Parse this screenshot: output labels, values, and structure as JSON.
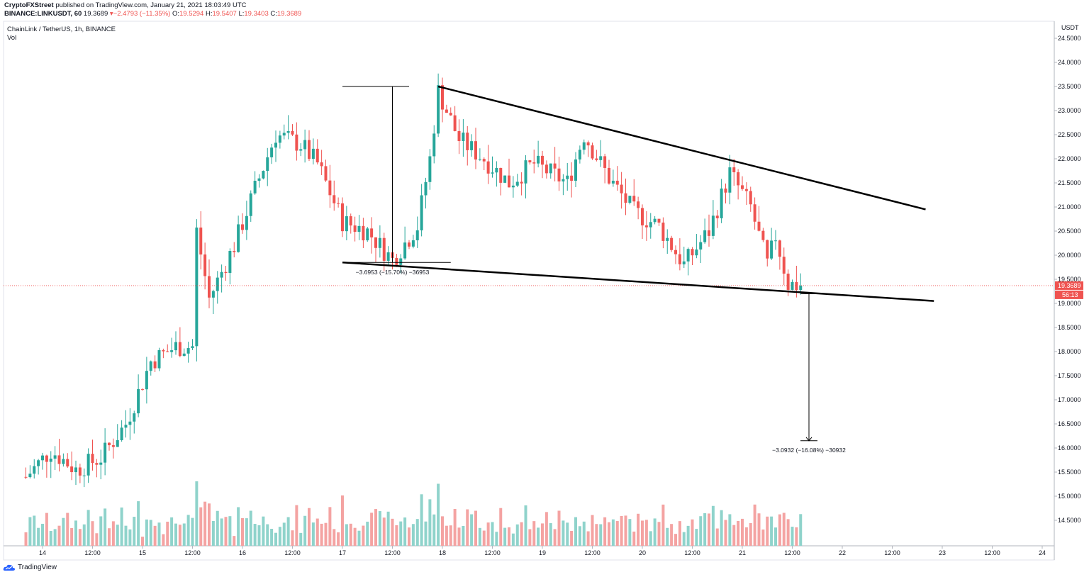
{
  "header": {
    "author": "CryptoFXStreet",
    "published": "published on TradingView.com, January 21, 2021 18:03:49 UTC",
    "ticker": "BINANCE:LINKUSDT, 60",
    "last": "19.3689",
    "change": "−2.4793 (−11.35%)",
    "o_label": "O:",
    "o": "19.5294",
    "h_label": "H:",
    "h": "19.5407",
    "l_label": "L:",
    "l": "19.3403",
    "c_label": "C:",
    "c": "19.3689"
  },
  "symbol_title": "ChainLink / TetherUS, 1h, BINANCE",
  "volume_label": "Vol",
  "brand": "TradingView",
  "colors": {
    "up": "#26a69a",
    "down": "#ef5350",
    "vol_up": "#8fd3cb",
    "vol_down": "#f4a3a2",
    "line": "#000000",
    "axis": "#b2b5be"
  },
  "chart_data": {
    "type": "candlestick",
    "interval": "1h",
    "ylim": [
      14.0,
      24.75
    ],
    "currency_label": "USDT",
    "price_ticks": [
      "24.5000",
      "24.0000",
      "23.5000",
      "23.0000",
      "22.5000",
      "22.0000",
      "21.5000",
      "21.0000",
      "20.5000",
      "20.0000",
      "19.5000",
      "19.0000",
      "18.5000",
      "18.0000",
      "17.5000",
      "17.0000",
      "16.5000",
      "16.0000",
      "15.5000",
      "15.0000",
      "14.5000"
    ],
    "time_ticks": [
      "14",
      "12:00",
      "15",
      "12:00",
      "16",
      "12:00",
      "17",
      "12:00",
      "18",
      "12:00",
      "19",
      "12:00",
      "20",
      "12:00",
      "21",
      "12:00",
      "22",
      "12:00",
      "23",
      "12:00",
      "24"
    ],
    "last_price_label": "19.3689",
    "countdown_label": "56:13",
    "measure_1": "−3.6953 (−15.70%) −36953",
    "measure_2": "−3.0932 (−16.08%) −30932",
    "keypoints": [
      {
        "t": "Jan 13 20:00",
        "p": 15.4
      },
      {
        "t": "Jan 14 02:00",
        "p": 15.95
      },
      {
        "t": "Jan 14 08:00",
        "p": 15.55
      },
      {
        "t": "Jan 14 14:00",
        "p": 15.8
      },
      {
        "t": "Jan 14 20:00",
        "p": 16.5
      },
      {
        "t": "Jan 15 02:00",
        "p": 17.8
      },
      {
        "t": "Jan 15 08:00",
        "p": 18.1
      },
      {
        "t": "Jan 15 12:00",
        "p": 18.1
      },
      {
        "t": "Jan 15 13:00",
        "p": 20.5
      },
      {
        "t": "Jan 15 16:00",
        "p": 19.1
      },
      {
        "t": "Jan 15 22:00",
        "p": 20.2
      },
      {
        "t": "Jan 16 04:00",
        "p": 21.6
      },
      {
        "t": "Jan 16 08:00",
        "p": 22.5
      },
      {
        "t": "Jan 16 14:00",
        "p": 22.3
      },
      {
        "t": "Jan 16 18:00",
        "p": 21.9
      },
      {
        "t": "Jan 17 00:00",
        "p": 20.7
      },
      {
        "t": "Jan 17 06:00",
        "p": 20.5
      },
      {
        "t": "Jan 17 12:00",
        "p": 19.9
      },
      {
        "t": "Jan 17 18:00",
        "p": 20.6
      },
      {
        "t": "Jan 17 21:00",
        "p": 22.0
      },
      {
        "t": "Jan 17 23:00",
        "p": 23.4
      },
      {
        "t": "Jan 18 04:00",
        "p": 22.4
      },
      {
        "t": "Jan 18 10:00",
        "p": 22.0
      },
      {
        "t": "Jan 18 16:00",
        "p": 21.5
      },
      {
        "t": "Jan 18 22:00",
        "p": 21.9
      },
      {
        "t": "Jan 19 06:00",
        "p": 21.5
      },
      {
        "t": "Jan 19 10:00",
        "p": 22.5
      },
      {
        "t": "Jan 19 16:00",
        "p": 21.6
      },
      {
        "t": "Jan 19 22:00",
        "p": 20.9
      },
      {
        "t": "Jan 20 04:00",
        "p": 20.6
      },
      {
        "t": "Jan 20 10:00",
        "p": 19.8
      },
      {
        "t": "Jan 20 16:00",
        "p": 20.5
      },
      {
        "t": "Jan 20 21:00",
        "p": 21.7
      },
      {
        "t": "Jan 21 02:00",
        "p": 21.0
      },
      {
        "t": "Jan 21 06:00",
        "p": 19.8
      },
      {
        "t": "Jan 21 08:00",
        "p": 20.4
      },
      {
        "t": "Jan 21 11:00",
        "p": 19.4
      },
      {
        "t": "Jan 21 14:00",
        "p": 19.37
      }
    ],
    "trendlines": [
      {
        "name": "upper",
        "from": {
          "t": "Jan 17 23:00",
          "p": 23.5
        },
        "to": {
          "t": "Jan 22 20:00",
          "p": 20.95
        }
      },
      {
        "name": "lower",
        "from": {
          "t": "Jan 17 00:00",
          "p": 19.85
        },
        "to": {
          "t": "Jan 22 22:00",
          "p": 19.05
        }
      }
    ],
    "measurements": [
      {
        "from": {
          "t": "Jan 17 00:00",
          "p": 23.5
        },
        "to": {
          "t": "Jan 17 12:00",
          "p": 19.85
        },
        "change": -3.6953,
        "pct": -15.7
      },
      {
        "from": {
          "t": "Jan 21 16:00",
          "p": 19.2
        },
        "to": {
          "t": "Jan 21 16:00",
          "p": 16.15
        },
        "change": -3.0932,
        "pct": -16.08
      }
    ]
  }
}
